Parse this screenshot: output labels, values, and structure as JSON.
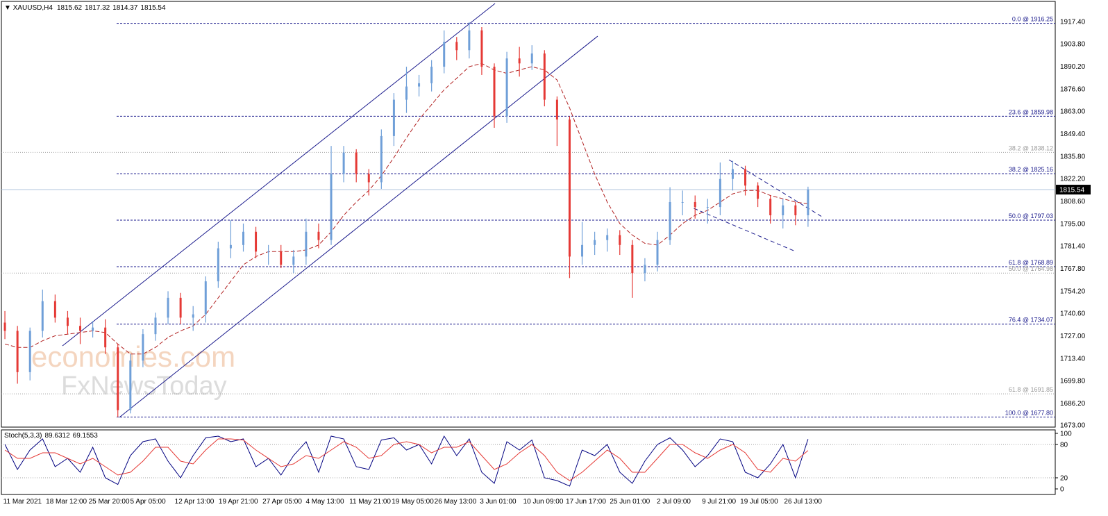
{
  "chart_data": {
    "type": "candlestick",
    "symbol": "XAUUSD,H4",
    "header_values": [
      1815.62,
      1817.32,
      1814.37,
      1815.54
    ],
    "x": [
      0,
      1,
      2,
      3,
      4,
      5,
      6,
      7,
      8,
      9,
      10,
      11,
      12,
      13,
      14,
      15,
      16,
      17,
      18,
      19,
      20,
      21,
      22,
      23,
      24,
      25,
      26,
      27,
      28,
      29,
      30,
      31,
      32,
      33,
      34,
      35,
      36,
      37,
      38,
      39,
      40,
      41,
      42,
      43,
      44,
      45,
      46,
      47,
      48,
      49,
      50,
      51,
      52,
      53,
      54,
      55,
      56,
      57,
      58,
      59,
      60,
      61,
      62,
      63,
      64
    ],
    "open": [
      1735,
      1730,
      1705,
      1730,
      1748,
      1738,
      1733,
      1730,
      1732,
      1720,
      1682,
      1712,
      1728,
      1738,
      1750,
      1738,
      1740,
      1760,
      1780,
      1782,
      1790,
      1778,
      1778,
      1770,
      1775,
      1790,
      1785,
      1825,
      1838,
      1825,
      1820,
      1848,
      1870,
      1878,
      1880,
      1890,
      1905,
      1900,
      1912,
      1890,
      1860,
      1895,
      1892,
      1898,
      1870,
      1858,
      1775,
      1782,
      1785,
      1788,
      1782,
      1765,
      1770,
      1785,
      1808,
      1808,
      1805,
      1805,
      1822,
      1828,
      1818,
      1810,
      1800,
      1806,
      1800
    ],
    "high": [
      1742,
      1733,
      1732,
      1755,
      1752,
      1742,
      1738,
      1736,
      1737,
      1722,
      1716,
      1731,
      1741,
      1754,
      1753,
      1745,
      1763,
      1784,
      1797,
      1795,
      1793,
      1782,
      1782,
      1779,
      1798,
      1795,
      1842,
      1842,
      1840,
      1828,
      1852,
      1874,
      1890,
      1885,
      1894,
      1912,
      1908,
      1917,
      1914,
      1892,
      1899,
      1902,
      1903,
      1900,
      1872,
      1860,
      1796,
      1790,
      1792,
      1791,
      1785,
      1774,
      1790,
      1817,
      1815,
      1812,
      1810,
      1832,
      1833,
      1830,
      1820,
      1812,
      1810,
      1808,
      1817.32
    ],
    "low": [
      1725,
      1698,
      1700,
      1726,
      1735,
      1728,
      1722,
      1726,
      1716,
      1677.8,
      1680,
      1708,
      1724,
      1734,
      1734,
      1730,
      1735,
      1756,
      1774,
      1778,
      1774,
      1770,
      1768,
      1765,
      1770,
      1780,
      1782,
      1820,
      1820,
      1812,
      1816,
      1842,
      1862,
      1872,
      1875,
      1886,
      1894,
      1895,
      1885,
      1853,
      1856,
      1884,
      1888,
      1866,
      1842,
      1762,
      1770,
      1776,
      1778,
      1776,
      1750,
      1760,
      1766,
      1782,
      1800,
      1798,
      1795,
      1800,
      1815,
      1812,
      1805,
      1795,
      1792,
      1794,
      1793
    ],
    "close": [
      1730,
      1705,
      1730,
      1748,
      1738,
      1733,
      1730,
      1732,
      1720,
      1682,
      1712,
      1728,
      1738,
      1750,
      1738,
      1740,
      1760,
      1780,
      1782,
      1790,
      1778,
      1778,
      1770,
      1775,
      1790,
      1785,
      1825,
      1838,
      1825,
      1820,
      1848,
      1870,
      1878,
      1880,
      1890,
      1905,
      1900,
      1912,
      1890,
      1860,
      1895,
      1892,
      1898,
      1870,
      1858,
      1775,
      1782,
      1785,
      1788,
      1782,
      1765,
      1770,
      1785,
      1808,
      1808,
      1805,
      1805,
      1822,
      1828,
      1818,
      1810,
      1800,
      1806,
      1800,
      1815.54
    ],
    "up_color": "#6f9fd8",
    "down_color": "#e53935",
    "moving_average": {
      "color": "#b22222",
      "values": [
        1722,
        1720,
        1720,
        1724,
        1727,
        1728,
        1729,
        1730,
        1729,
        1722,
        1716,
        1716,
        1720,
        1726,
        1730,
        1733,
        1740,
        1750,
        1760,
        1770,
        1775,
        1778,
        1778,
        1778,
        1779,
        1782,
        1790,
        1800,
        1808,
        1815,
        1824,
        1835,
        1847,
        1858,
        1867,
        1876,
        1883,
        1890,
        1892,
        1888,
        1886,
        1888,
        1890,
        1888,
        1882,
        1865,
        1845,
        1825,
        1808,
        1795,
        1788,
        1783,
        1782,
        1788,
        1795,
        1800,
        1803,
        1808,
        1813,
        1815,
        1815,
        1812,
        1810,
        1808,
        1807
      ]
    },
    "xlim": [
      -0.28,
      83.7
    ],
    "ylim": [
      1671.7,
      1930.4
    ],
    "xticks": [
      {
        "value": 1.4,
        "label": "11 Mar 2021"
      },
      {
        "value": 4.9,
        "label": "18 Mar 12:00"
      },
      {
        "value": 8.3,
        "label": "25 Mar 20:00"
      },
      {
        "value": 11.4,
        "label": "5 Apr 05:00"
      },
      {
        "value": 15.1,
        "label": "12 Apr 13:00"
      },
      {
        "value": 18.6,
        "label": "19 Apr 21:00"
      },
      {
        "value": 22.1,
        "label": "27 Apr 05:00"
      },
      {
        "value": 25.5,
        "label": "4 May 13:00"
      },
      {
        "value": 29.1,
        "label": "11 May 21:00"
      },
      {
        "value": 32.5,
        "label": "19 May 05:00"
      },
      {
        "value": 35.9,
        "label": "26 May 13:00"
      },
      {
        "value": 39.3,
        "label": "3 Jun 01:00"
      },
      {
        "value": 42.9,
        "label": "10 Jun 09:00"
      },
      {
        "value": 46.3,
        "label": "17 Jun 17:00"
      },
      {
        "value": 49.8,
        "label": "25 Jun 01:00"
      },
      {
        "value": 53.3,
        "label": "2 Jul 09:00"
      },
      {
        "value": 56.9,
        "label": "9 Jul 21:00"
      },
      {
        "value": 60.1,
        "label": "19 Jul 05:00"
      },
      {
        "value": 63.6,
        "label": "26 Jul 13:00"
      }
    ],
    "yticks": [
      {
        "value": 1917.4,
        "label": "1917.40"
      },
      {
        "value": 1903.8,
        "label": "1903.80"
      },
      {
        "value": 1890.2,
        "label": "1890.20"
      },
      {
        "value": 1876.6,
        "label": "1876.60"
      },
      {
        "value": 1863,
        "label": "1863.00"
      },
      {
        "value": 1849.4,
        "label": "1849.40"
      },
      {
        "value": 1835.8,
        "label": "1835.80"
      },
      {
        "value": 1822.2,
        "label": "1822.20"
      },
      {
        "value": 1808.6,
        "label": "1808.60"
      },
      {
        "value": 1795,
        "label": "1795.00"
      },
      {
        "value": 1781.4,
        "label": "1781.40"
      },
      {
        "value": 1767.8,
        "label": "1767.80"
      },
      {
        "value": 1754.2,
        "label": "1754.20"
      },
      {
        "value": 1740.6,
        "label": "1740.60"
      },
      {
        "value": 1727,
        "label": "1727.00"
      },
      {
        "value": 1713.4,
        "label": "1713.40"
      },
      {
        "value": 1699.8,
        "label": "1699.80"
      },
      {
        "value": 1686.2,
        "label": "1686.20"
      },
      {
        "value": 1673,
        "label": "1673.00"
      }
    ],
    "current_price": 1815.54,
    "fibonacci": [
      {
        "value": 1916.25,
        "label": "0.0 @ 1916.25",
        "style": "primary"
      },
      {
        "value": 1859.98,
        "label": "23.6 @ 1859.98",
        "style": "primary"
      },
      {
        "value": 1825.16,
        "label": "38.2 @ 1825.16",
        "style": "primary"
      },
      {
        "value": 1797.03,
        "label": "50.0 @ 1797.03",
        "style": "primary"
      },
      {
        "value": 1768.89,
        "label": "61.8 @ 1768.89",
        "style": "primary"
      },
      {
        "value": 1734.07,
        "label": "76.4 @ 1734.07",
        "style": "primary"
      },
      {
        "value": 1677.8,
        "label": "100.0 @ 1677.80",
        "style": "primary"
      },
      {
        "value": 1838.12,
        "label": "38.2 @ 1838.12",
        "style": "secondary"
      },
      {
        "value": 1764.98,
        "label": "50.0 @ 1764.98",
        "style": "secondary"
      },
      {
        "value": 1691.85,
        "label": "61.8 @ 1691.85",
        "style": "secondary"
      }
    ],
    "trend_lines": [
      {
        "x": [
          4.59,
          39.06
        ],
        "y": [
          1720.9,
          1928.3
        ],
        "style": "solid"
      },
      {
        "x": [
          9.12,
          47.24
        ],
        "y": [
          1677.6,
          1908.5
        ],
        "style": "solid"
      },
      {
        "x": [
          57.7,
          65.2
        ],
        "y": [
          1833.6,
          1798.7
        ],
        "style": "dashed"
      },
      {
        "x": [
          54.9,
          63.0
        ],
        "y": [
          1804.2,
          1778.1
        ],
        "style": "dashed"
      }
    ],
    "watermark": [
      "economies.com",
      "FxNewsToday"
    ],
    "stochastic": {
      "name": "Stoch(5,3,3)",
      "ylim": [
        0,
        100
      ],
      "yticks": [
        0,
        20,
        80,
        100
      ],
      "levels": [
        20,
        80
      ],
      "series": [
        {
          "color": "#000080",
          "values": [
            80,
            35,
            70,
            90,
            40,
            55,
            30,
            75,
            20,
            8,
            60,
            85,
            90,
            50,
            20,
            60,
            92,
            95,
            85,
            90,
            40,
            55,
            25,
            60,
            85,
            30,
            95,
            90,
            40,
            35,
            88,
            92,
            70,
            80,
            45,
            95,
            60,
            90,
            30,
            10,
            85,
            70,
            88,
            20,
            15,
            5,
            70,
            60,
            80,
            30,
            10,
            50,
            80,
            92,
            70,
            40,
            60,
            90,
            85,
            30,
            20,
            45,
            80,
            20,
            89.6312
          ]
        },
        {
          "color": "#e53935",
          "values": [
            70,
            55,
            55,
            65,
            65,
            55,
            45,
            55,
            40,
            25,
            30,
            50,
            75,
            75,
            50,
            45,
            70,
            90,
            90,
            88,
            70,
            55,
            40,
            45,
            60,
            55,
            70,
            85,
            75,
            55,
            60,
            80,
            85,
            80,
            65,
            75,
            75,
            85,
            60,
            35,
            45,
            65,
            80,
            60,
            30,
            15,
            30,
            50,
            70,
            55,
            30,
            30,
            55,
            80,
            80,
            65,
            55,
            70,
            80,
            65,
            35,
            30,
            55,
            50,
            69.1553
          ]
        }
      ]
    }
  }
}
